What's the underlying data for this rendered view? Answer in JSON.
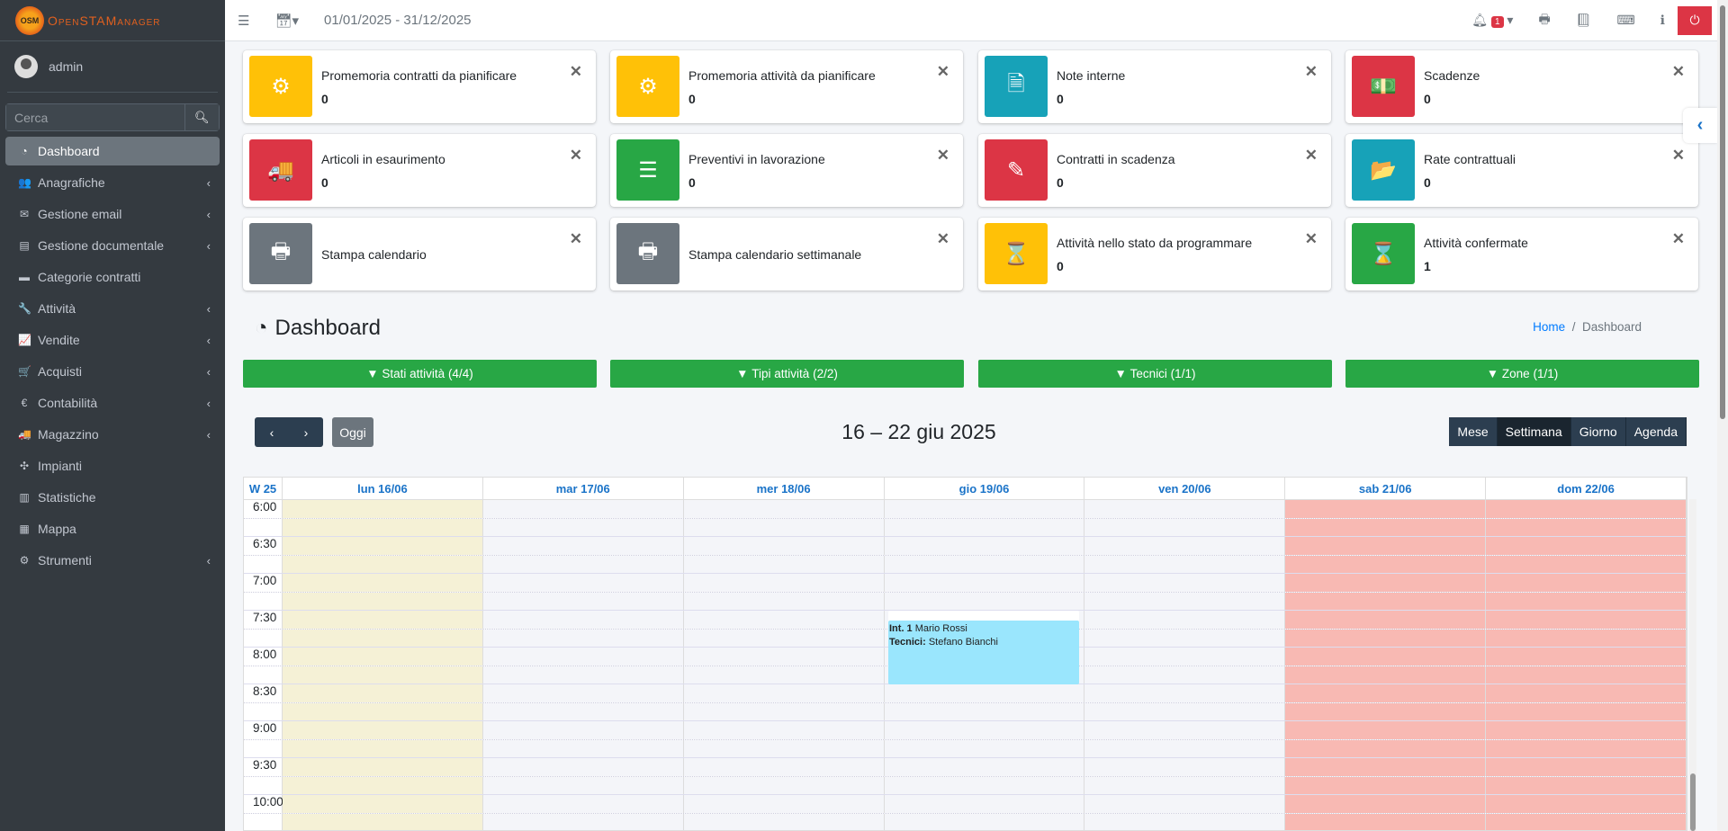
{
  "brand": {
    "name": "OpenSTAManager",
    "short": "OSM"
  },
  "user": {
    "name": "admin"
  },
  "search": {
    "placeholder": "Cerca"
  },
  "sidebar": {
    "items": [
      {
        "label": "Dashboard",
        "icon": "tachometer-icon",
        "glyph": "◔",
        "active": true,
        "sub": false
      },
      {
        "label": "Anagrafiche",
        "icon": "users-icon",
        "glyph": "👥",
        "sub": true
      },
      {
        "label": "Gestione email",
        "icon": "envelope-icon",
        "glyph": "✉",
        "sub": true
      },
      {
        "label": "Gestione documentale",
        "icon": "file-icon",
        "glyph": "▤",
        "sub": true
      },
      {
        "label": "Categorie contratti",
        "icon": "briefcase-icon",
        "glyph": "▬",
        "sub": false
      },
      {
        "label": "Attività",
        "icon": "wrench-icon",
        "glyph": "🔧",
        "sub": true
      },
      {
        "label": "Vendite",
        "icon": "chart-line-icon",
        "glyph": "📈",
        "sub": true
      },
      {
        "label": "Acquisti",
        "icon": "cart-icon",
        "glyph": "🛒",
        "sub": true
      },
      {
        "label": "Contabilità",
        "icon": "euro-icon",
        "glyph": "€",
        "sub": true
      },
      {
        "label": "Magazzino",
        "icon": "truck-icon",
        "glyph": "🚚",
        "sub": true
      },
      {
        "label": "Impianti",
        "icon": "puzzle-icon",
        "glyph": "✣",
        "sub": false
      },
      {
        "label": "Statistiche",
        "icon": "bar-chart-icon",
        "glyph": "▥",
        "sub": false
      },
      {
        "label": "Mappa",
        "icon": "map-icon",
        "glyph": "▦",
        "sub": false
      },
      {
        "label": "Strumenti",
        "icon": "cog-icon",
        "glyph": "⚙",
        "sub": true
      }
    ]
  },
  "topbar": {
    "period": "01/01/2025 - 31/12/2025",
    "notifications": "1"
  },
  "cards": [
    {
      "title": "Promemoria contratti da pianificare",
      "value": "0",
      "color": "#ffc107",
      "icon": "cog-icon",
      "glyph": "⚙"
    },
    {
      "title": "Promemoria attività da pianificare",
      "value": "0",
      "color": "#ffc107",
      "icon": "cogs-icon",
      "glyph": "⚙"
    },
    {
      "title": "Note interne",
      "value": "0",
      "color": "#17a2b8",
      "icon": "file-text-icon",
      "glyph": "🗎"
    },
    {
      "title": "Scadenze",
      "value": "0",
      "color": "#dc3545",
      "icon": "money-icon",
      "glyph": "💵"
    },
    {
      "title": "Articoli in esaurimento",
      "value": "0",
      "color": "#dc3545",
      "icon": "truck-icon",
      "glyph": "🚚"
    },
    {
      "title": "Preventivi in lavorazione",
      "value": "0",
      "color": "#28a745",
      "icon": "server-icon",
      "glyph": "☰"
    },
    {
      "title": "Contratti in scadenza",
      "value": "0",
      "color": "#dc3545",
      "icon": "edit-icon",
      "glyph": "✎"
    },
    {
      "title": "Rate contrattuali",
      "value": "0",
      "color": "#17a2b8",
      "icon": "folder-open-icon",
      "glyph": "📂"
    },
    {
      "title": "Stampa calendario",
      "color": "#6c757d",
      "icon": "print-icon",
      "glyph": "🖶"
    },
    {
      "title": "Stampa calendario settimanale",
      "color": "#6c757d",
      "icon": "print-icon",
      "glyph": "🖶"
    },
    {
      "title": "Attività nello stato da programmare",
      "value": "0",
      "color": "#ffc107",
      "icon": "hourglass-icon",
      "glyph": "⌛"
    },
    {
      "title": "Attività confermate",
      "value": "1",
      "color": "#28a745",
      "icon": "hourglass-icon",
      "glyph": "⌛"
    }
  ],
  "page": {
    "title": "Dashboard",
    "breadcrumb": [
      "Home",
      "Dashboard"
    ]
  },
  "filters": [
    "Stati attività (4/4)",
    "Tipi attività (2/2)",
    "Tecnici (1/1)",
    "Zone (1/1)"
  ],
  "calendar": {
    "title": "16 – 22 giu 2025",
    "today": "Oggi",
    "views": [
      "Mese",
      "Settimana",
      "Giorno",
      "Agenda"
    ],
    "active_view": "Settimana",
    "week": "W 25",
    "days": [
      "lun 16/06",
      "mar 17/06",
      "mer 18/06",
      "gio 19/06",
      "ven 20/06",
      "sab 21/06",
      "dom 22/06"
    ],
    "times": [
      "6:00",
      "6:30",
      "7:00",
      "7:30",
      "8:00",
      "8:30",
      "9:00",
      "9:30",
      "10:00"
    ],
    "event": {
      "num_label": "Int. 1",
      "client": "Mario Rossi",
      "tech_label": "Tecnici:",
      "tech": "Stefano Bianchi",
      "day": "gio 19/06",
      "start": "7:30",
      "end": "8:30",
      "color": "#9ae6fd"
    }
  }
}
